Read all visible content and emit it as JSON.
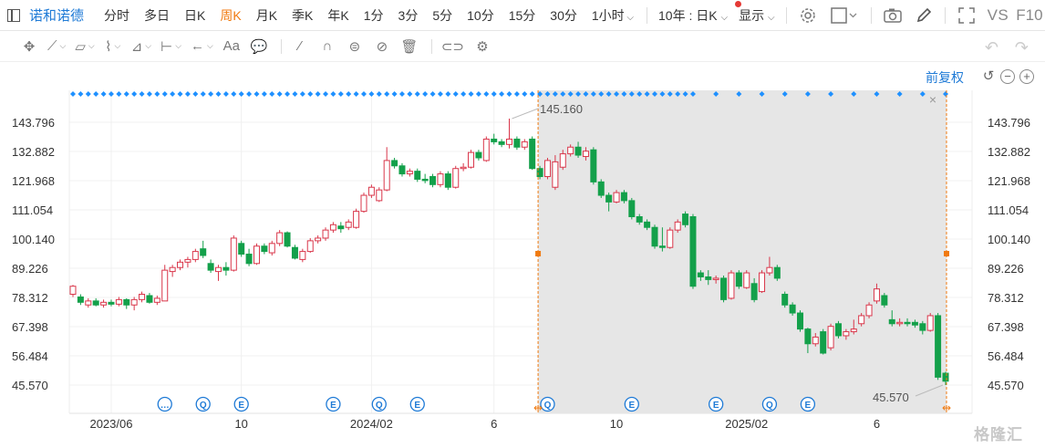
{
  "toolbar": {
    "stock_name": "诺和诺德",
    "periods": [
      "分时",
      "多日",
      "日K",
      "周K",
      "月K",
      "季K",
      "年K",
      "1分",
      "3分",
      "5分",
      "10分",
      "15分",
      "30分",
      "1小时"
    ],
    "active_period": "周K",
    "range_label": "10年 : 日K",
    "display_label": "显示",
    "vs_label": "VS",
    "f10_label": "F10",
    "icons": [
      "sidebar-toggle-icon",
      "settings-icon",
      "layout-icon",
      "camera-icon",
      "pen-icon",
      "fullscreen-icon"
    ]
  },
  "drawing_toolbar": {
    "tools": [
      "move-icon",
      "line-icon",
      "channel-icon",
      "wave-icon",
      "fib-icon",
      "measure-icon",
      "arrow-icon",
      "text-icon",
      "note-icon",
      "eraser-icon",
      "magnet-icon",
      "sync-icon",
      "hide-icon",
      "delete-icon",
      "link-icon",
      "settings-icon"
    ],
    "text_tool_label": "Aa"
  },
  "chart": {
    "adjust_label": "前复权",
    "zoom_icons": [
      "reset-icon",
      "zoom-out-icon",
      "zoom-in-icon"
    ],
    "high_label": "145.160",
    "low_label": "45.570",
    "watermark": "格隆汇",
    "colors": {
      "up": "#d9364a",
      "down": "#13a04a",
      "accent": "#1e7ad6",
      "selection": "#f07a10",
      "dots": "#1e90ff"
    }
  },
  "chart_data": {
    "type": "candlestick",
    "y_ticks": [
      143.796,
      132.882,
      121.968,
      111.054,
      100.14,
      89.226,
      78.312,
      67.398,
      56.484,
      45.57
    ],
    "y_tick_labels": [
      "143.796",
      "132.882",
      "121.968",
      "111.054",
      "100.140",
      "89.226",
      "78.312",
      "67.398",
      "56.484",
      "45.570"
    ],
    "ylim": [
      41.5,
      151.0
    ],
    "x_labels": [
      {
        "text": "2023/06",
        "index": 5
      },
      {
        "text": "10",
        "index": 22
      },
      {
        "text": "2024/02",
        "index": 39
      },
      {
        "text": "6",
        "index": 55
      },
      {
        "text": "10",
        "index": 71
      },
      {
        "text": "2025/02",
        "index": 88
      },
      {
        "text": "6",
        "index": 105
      }
    ],
    "event_markers": [
      {
        "label": "…",
        "index": 12
      },
      {
        "label": "Q",
        "index": 17
      },
      {
        "label": "E",
        "index": 22
      },
      {
        "label": "E",
        "index": 34
      },
      {
        "label": "Q",
        "index": 40
      },
      {
        "label": "E",
        "index": 45
      },
      {
        "label": "Q",
        "index": 62
      },
      {
        "label": "E",
        "index": 73
      },
      {
        "label": "E",
        "index": 84
      },
      {
        "label": "Q",
        "index": 91
      },
      {
        "label": "E",
        "index": 96
      }
    ],
    "selection_start_index": 61,
    "grid": true,
    "candles": [
      [
        79.5,
        82.5,
        78.5,
        83.0
      ],
      [
        78.5,
        76.5,
        75.5,
        79.5
      ],
      [
        75.5,
        77.0,
        74.5,
        78.0
      ],
      [
        77.0,
        75.5,
        75.0,
        78.0
      ],
      [
        75.5,
        76.5,
        74.5,
        77.5
      ],
      [
        76.5,
        75.8,
        75.0,
        77.5
      ],
      [
        75.8,
        77.5,
        75.0,
        78.5
      ],
      [
        77.5,
        75.5,
        74.0,
        78.0
      ],
      [
        75.5,
        77.5,
        73.5,
        78.5
      ],
      [
        77.5,
        79.5,
        76.5,
        80.5
      ],
      [
        79.0,
        76.5,
        76.0,
        80.0
      ],
      [
        76.5,
        78.0,
        75.5,
        79.0
      ],
      [
        77.0,
        88.5,
        77.0,
        90.5
      ],
      [
        88.0,
        89.5,
        86.0,
        90.5
      ],
      [
        89.5,
        91.5,
        88.5,
        92.5
      ],
      [
        91.5,
        92.5,
        89.5,
        93.5
      ],
      [
        92.5,
        95.5,
        91.5,
        96.5
      ],
      [
        96.5,
        94.0,
        93.0,
        99.5
      ],
      [
        91.0,
        88.5,
        87.5,
        92.5
      ],
      [
        88.0,
        89.5,
        84.5,
        90.5
      ],
      [
        89.5,
        88.5,
        86.5,
        91.5
      ],
      [
        88.5,
        100.5,
        88.0,
        101.5
      ],
      [
        98.5,
        94.5,
        93.5,
        99.5
      ],
      [
        94.5,
        91.0,
        90.0,
        96.5
      ],
      [
        91.0,
        97.5,
        90.5,
        98.5
      ],
      [
        97.5,
        95.5,
        94.5,
        98.5
      ],
      [
        95.0,
        98.5,
        94.0,
        99.5
      ],
      [
        98.5,
        102.5,
        97.5,
        103.5
      ],
      [
        102.5,
        97.5,
        97.0,
        103.0
      ],
      [
        97.0,
        93.0,
        92.5,
        98.0
      ],
      [
        92.5,
        95.5,
        91.5,
        96.5
      ],
      [
        95.5,
        99.5,
        95.0,
        100.5
      ],
      [
        99.5,
        100.5,
        98.5,
        101.5
      ],
      [
        100.5,
        103.5,
        99.5,
        104.5
      ],
      [
        103.5,
        105.5,
        102.5,
        106.5
      ],
      [
        105.0,
        104.0,
        102.5,
        106.5
      ],
      [
        104.5,
        106.5,
        103.5,
        107.5
      ],
      [
        104.5,
        110.5,
        104.0,
        111.5
      ],
      [
        110.5,
        116.5,
        110.0,
        117.5
      ],
      [
        116.5,
        119.5,
        115.5,
        120.5
      ],
      [
        114.5,
        118.5,
        114.0,
        119.5
      ],
      [
        118.5,
        129.5,
        118.0,
        134.5
      ],
      [
        129.5,
        127.5,
        126.5,
        130.5
      ],
      [
        127.5,
        124.5,
        123.5,
        128.5
      ],
      [
        124.5,
        125.5,
        123.5,
        126.5
      ],
      [
        125.5,
        122.5,
        121.5,
        126.5
      ],
      [
        122.5,
        122.0,
        121.0,
        124.5
      ],
      [
        123.5,
        120.5,
        119.5,
        124.5
      ],
      [
        120.5,
        124.5,
        119.5,
        125.5
      ],
      [
        124.5,
        119.5,
        118.5,
        125.5
      ],
      [
        119.5,
        126.5,
        119.0,
        127.5
      ],
      [
        126.5,
        127.0,
        125.5,
        128.5
      ],
      [
        127.0,
        132.5,
        126.5,
        133.5
      ],
      [
        132.5,
        130.5,
        129.5,
        133.5
      ],
      [
        129.5,
        137.5,
        129.0,
        138.5
      ],
      [
        137.5,
        136.5,
        135.5,
        139.5
      ],
      [
        136.5,
        135.5,
        134.5,
        137.5
      ],
      [
        135.5,
        137.5,
        134.0,
        145.16
      ],
      [
        137.5,
        134.5,
        133.5,
        138.5
      ],
      [
        134.5,
        136.5,
        133.5,
        137.5
      ],
      [
        137.5,
        126.5,
        126.0,
        138.5
      ],
      [
        126.5,
        123.5,
        122.5,
        127.5
      ],
      [
        123.5,
        129.5,
        122.5,
        130.5
      ],
      [
        119.5,
        129.0,
        118.5,
        131.5
      ],
      [
        127.0,
        132.0,
        126.0,
        133.5
      ],
      [
        132.0,
        134.5,
        131.0,
        135.5
      ],
      [
        134.5,
        131.5,
        130.5,
        136.5
      ],
      [
        131.0,
        133.0,
        129.5,
        134.5
      ],
      [
        133.5,
        121.5,
        120.5,
        134.5
      ],
      [
        121.5,
        116.5,
        115.5,
        122.5
      ],
      [
        116.5,
        114.0,
        110.5,
        117.5
      ],
      [
        114.0,
        117.5,
        113.5,
        118.5
      ],
      [
        117.5,
        114.5,
        113.5,
        118.5
      ],
      [
        114.5,
        108.5,
        107.5,
        115.5
      ],
      [
        108.5,
        106.5,
        105.5,
        109.5
      ],
      [
        106.5,
        104.5,
        103.5,
        107.5
      ],
      [
        104.5,
        97.5,
        96.5,
        105.5
      ],
      [
        97.5,
        97.0,
        95.5,
        104.5
      ],
      [
        97.0,
        103.5,
        96.5,
        104.5
      ],
      [
        103.5,
        106.5,
        102.5,
        107.5
      ],
      [
        109.5,
        105.5,
        104.5,
        110.5
      ],
      [
        108.5,
        82.5,
        81.5,
        109.5
      ],
      [
        87.5,
        86.0,
        84.5,
        88.5
      ],
      [
        86.0,
        85.0,
        83.0,
        88.5
      ],
      [
        85.0,
        85.5,
        83.5,
        86.5
      ],
      [
        85.5,
        77.5,
        76.5,
        86.5
      ],
      [
        78.0,
        87.5,
        77.5,
        88.5
      ],
      [
        87.5,
        82.5,
        81.5,
        88.5
      ],
      [
        82.0,
        87.5,
        81.5,
        88.5
      ],
      [
        83.5,
        77.5,
        76.5,
        85.5
      ],
      [
        80.5,
        87.5,
        80.0,
        88.5
      ],
      [
        87.5,
        89.5,
        86.5,
        93.5
      ],
      [
        89.5,
        85.5,
        84.5,
        90.5
      ],
      [
        79.5,
        75.5,
        74.5,
        80.5
      ],
      [
        75.5,
        72.5,
        71.5,
        76.5
      ],
      [
        72.5,
        66.5,
        65.5,
        73.5
      ],
      [
        66.5,
        61.0,
        57.5,
        67.0
      ],
      [
        61.0,
        63.5,
        60.0,
        65.0
      ],
      [
        65.5,
        57.5,
        57.0,
        66.5
      ],
      [
        59.5,
        67.5,
        58.5,
        68.5
      ],
      [
        68.5,
        64.0,
        63.0,
        69.5
      ],
      [
        64.0,
        65.5,
        62.5,
        66.5
      ],
      [
        65.5,
        66.5,
        64.5,
        70.0
      ],
      [
        68.5,
        71.5,
        67.5,
        72.5
      ],
      [
        71.5,
        75.5,
        70.5,
        76.5
      ],
      [
        77.0,
        81.5,
        76.0,
        83.5
      ],
      [
        79.0,
        75.5,
        74.5,
        80.0
      ],
      [
        70.0,
        68.5,
        67.5,
        73.5
      ],
      [
        68.5,
        69.0,
        67.5,
        70.5
      ],
      [
        69.0,
        68.5,
        67.5,
        70.5
      ],
      [
        69.0,
        68.0,
        67.0,
        70.0
      ],
      [
        68.5,
        66.0,
        64.5,
        69.5
      ],
      [
        66.0,
        71.5,
        65.5,
        72.5
      ],
      [
        71.5,
        48.5,
        47.5,
        72.5
      ],
      [
        50.0,
        47.0,
        45.57,
        50.5
      ]
    ]
  }
}
